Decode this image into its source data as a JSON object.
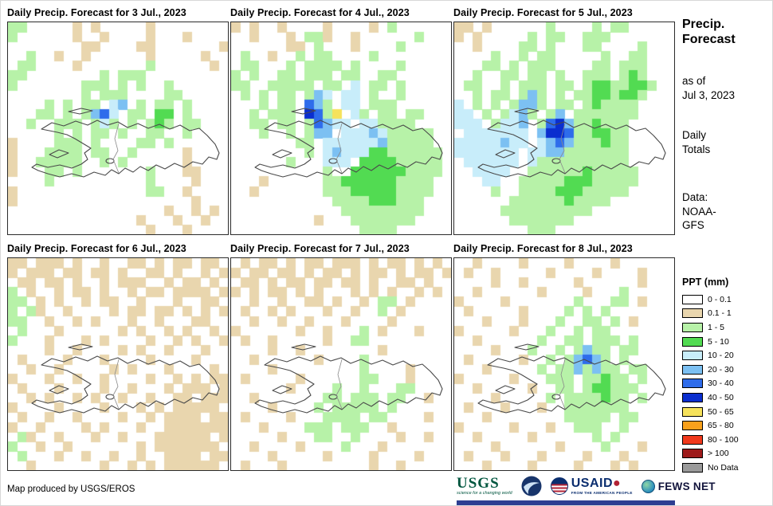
{
  "panels": [
    {
      "title": "Daily Precip. Forecast for 3 Jul., 2023",
      "grid": [
        "gg.....t.t.....t........",
        "g......t..t....t...t....",
        "........tt....tt.......t",
        "..g..t..t......t.....t..",
        ".gg....t.......g......t.",
        "gg........g.ggg.........",
        "g.......ggg.g.g..g......",
        "........g.ggg....gg.....",
        "....g.g.gg.cb.g.gg.g....",
        "...gg.g.gbBc.gg.GG.g....",
        "..g..ggg.gcg.g.gGg.gg...",
        ".....g.g.gg.g..gg..g....",
        "t....ggg.g....gg.g......",
        "t...gggg.gg..g.....t....",
        "t..ggggg..g.g......t....",
        "t...gg.g.......g...tt...",
        "....g..........g....t...",
        "t..............gg..t....",
        "t...................t...",
        ".................t..t.t.",
        "..............t...t..t..",
        "...............t...t...."
      ]
    },
    {
      "title": "Daily Precip. Forecast for 4 Jul., 2023",
      "grid": [
        "t.t..t....t....t.g......",
        "..t...t.ggt..t......g...",
        "......tt.g...t....g.....",
        ".g..t..g.gg....g........",
        ".gg...g.gggg.g....g.....",
        "g.g..gg.ggg.gg..gg......",
        "gg..ggggg.gg.c.gg.g.....",
        ".g.g.gg.gbc.cc.g..g.....",
        "...g.gg.Bbg.cc.ggg......",
        "..g.ggg.DBgy.cg.gg.gg...",
        "..gg.gg.gBbcc.ccgggg....",
        "...g..g.gbb.cccbcggggg..",
        ".......gg.ccccccbggggg..",
        "........g.cbcccGGgggggg.",
        "......g...ccc.GGGGggggg.",
        "..........g..GGGGGGgggg.",
        "...t......ggGGGGGGgggg..",
        "..t.......gggGGGGGgggg..",
        "...........ggggGGGggg...",
        "............ggggggggg...",
        ".........t...ggggggg....",
        "..............gggg......"
      ]
    },
    {
      "title": "Daily Precip. Forecast for 5 Jul., 2023",
      "grid": [
        "tt.t......g....g.gg.....",
        "t.t.....g.gg..ggg.......",
        "..t....gg.g...gg....g...",
        "....g..g.gg.....g..gg...",
        "...gg.g.ggg....gg.ggg...",
        "..g..gg.gg.g..ggg.gGg...",
        ".gg..g.ggg.gg.gGGggGGg..",
        "..g.gg.gbg.g.ggGGgGGg...",
        "c.g.g.gbbg.gg.gGgggg....",
        "cc.g.gcbg.gb.ggggggg....",
        "ccc.gccb.gBDbggGggg.....",
        ".ccccccc.bDDBggGGgg.....",
        "cccccbcc.cbBbgggGgg.....",
        "ccccccc.ccbbggggggg.....",
        ".cccccc.cgggggggggg.....",
        "..cccc..ggggggGggggg....",
        "...cc..gggggGGGggggg....",
        "....g..ggggGGGggggg.....",
        "......ggggggGgggg.......",
        ".....gggggggggg.........",
        "......ggggggg...........",
        "........ggg............."
      ]
    },
    {
      "title": "Daily Precip. Forecast for 6 Jul., 2023",
      "grid": [
        "tt.ttt.t..t..tt.t.tt.tt.",
        "t.ttt.tt.tt.t..tt.t..t.t",
        ".tt.tt.t..t.ttt..t.tt.t.",
        "g.t..t.tt.t..t.tt.tttt.t",
        "gg.t.t..t.tt..t...t..tt.",
        "g.gt..t....t.tt.tt.t.t.t",
        "gg..t..t.t...t..t...tt..",
        ".g...t......t.t..t.t..t.",
        "g...t...t.t....t..t.t..t",
        "....t..t....t.t..t...t..",
        ".t....t...t....t....t...",
        "..t..t.....t.t...t....t.",
        "t...t..t..t....t..t.t.tt",
        ".t...t....t..t...t.ttt.t",
        "..t.t..t.t..t..t..tt.ttt",
        "t....t....t...t.t.ttttt.",
        ".t..t..t....t..t.tttt.tt",
        "t..t....t.t...t..ttttttt",
        ".gt..t...t..t...tttttt.t",
        "g..t..t.......t.ttttttt.",
        ".g...t..t..t..t..tttt.tt",
        "..t.......t..t.t.tttttt."
      ]
    },
    {
      "title": "Daily Precip. Forecast for 7 Jul., 2023",
      "grid": [
        ".t.tt.t.tt.ttt.t.tt.t.t.",
        "t.tt.tt.t.tt.t.tt.t.tt.t",
        ".tt.t.tt.tt.tt.t..tt.t..",
        "t.t.tt.t.t...t.t.t..t.t.",
        "..t..t..tt.t..t.gg.t....",
        ".t..t.t...t..t..g.t.....",
        "..t..t..t...t....t......",
        "t......t..t...g.t...t...",
        ".t..t.....t..gg.........",
        "....t..t........t.......",
        "..t......t....g.........",
        "....t.........g....t....",
        ".t.....t......gg...t....",
        "......t....g..g...gg....",
        "..t.......gg.ggg.gg..t..",
        "....t....g.ggggg.g......",
        ".t....t...gggg.gg....t..",
        "...t....ggg.ggg..t......",
        ".....t...gg..g....t..t..",
        "..t....t....g...t.......",
        "....t.....t....t....t...",
        ".t...t.........t..t....."
      ]
    },
    {
      "title": "Daily Precip. Forecast for 8 Jul., 2023",
      "grid": [
        "..t....t....t....t......",
        ".t..t.....t....t....t...",
        "....t..t.....t......t...",
        "..t......t....t...g.....",
        "t....t.......g...gg.t...",
        ".t.....t....g.g.g.......",
        "...t...t...g..gg.g.t....",
        "t.....t...g..g.gg.......",
        "..t......g..gg.ggg.g....",
        "....t...g..g.gbgg.gg....",
        ".t.....t..g.gbBbg.g.....",
        "...t.....g.ggbgbgg.gg...",
        "t.....t...ggg.ggGgg.g...",
        "..t.....t..gg.gGGggg....",
        "....t.....g.ggggGgg.g...",
        ".t...t...t..ggggggg.....",
        "...t........ggggg.gg....",
        "t.....t...t..ggg..g.....",
        "..t.....t......g.g......",
        "....t......t....g...t...",
        ".t...t...t....t...t.....",
        "...t....t....t...t.t...."
      ]
    }
  ],
  "palette": {
    ".": "#ffffff",
    "t": "#e9d6ae",
    "g": "#b7f2a8",
    "G": "#52db52",
    "c": "#c8edfa",
    "b": "#7cc0f2",
    "B": "#2e6ceb",
    "D": "#0a2ecf",
    "y": "#f6e25b",
    "o": "#f9a11b",
    "r": "#f0391c",
    "R": "#9e1b1b",
    "n": "#9a9a9a"
  },
  "sidebar": {
    "title_line1": "Precip.",
    "title_line2": "Forecast",
    "asof_line1": "as of",
    "asof_line2": "Jul 3, 2023",
    "totals_line1": "Daily",
    "totals_line2": "Totals",
    "data_line1": "Data:",
    "data_line2": "NOAA-",
    "data_line3": "GFS",
    "legend_title": "PPT (mm)",
    "legend": [
      {
        "label": "0 - 0.1",
        "color": "#ffffff"
      },
      {
        "label": "0.1 - 1",
        "color": "#e9d6ae"
      },
      {
        "label": "1 - 5",
        "color": "#b7f2a8"
      },
      {
        "label": "5 - 10",
        "color": "#52db52"
      },
      {
        "label": "10 - 20",
        "color": "#c8edfa"
      },
      {
        "label": "20 - 30",
        "color": "#7cc0f2"
      },
      {
        "label": "30 - 40",
        "color": "#2e6ceb"
      },
      {
        "label": "40 - 50",
        "color": "#0a2ecf"
      },
      {
        "label": "50 - 65",
        "color": "#f6e25b"
      },
      {
        "label": "65 - 80",
        "color": "#f9a11b"
      },
      {
        "label": "80 - 100",
        "color": "#f0391c"
      },
      {
        "label": "> 100",
        "color": "#9e1b1b"
      },
      {
        "label": "No Data",
        "color": "#9a9a9a"
      }
    ]
  },
  "footer": {
    "credit": "Map produced by USGS/EROS",
    "usgs_name": "USGS",
    "usgs_tagline": "science for a changing world",
    "usaid_name": "USAID",
    "usaid_tagline": "FROM THE AMERICAN PEOPLE",
    "fews_name": "FEWS NET"
  }
}
